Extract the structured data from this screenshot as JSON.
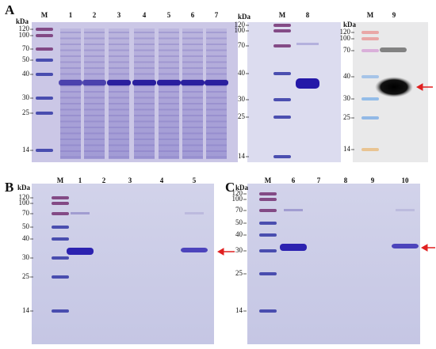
{
  "figure": {
    "panels": [
      {
        "label": "A",
        "gels": [
          {
            "unit": "kDa",
            "lanes": [
              "M",
              "1",
              "2",
              "3",
              "4",
              "5",
              "6",
              "7"
            ],
            "markers": [
              120,
              100,
              70,
              50,
              40,
              30,
              25,
              14
            ]
          },
          {
            "unit": "kDa",
            "lanes": [
              "M",
              "8"
            ],
            "markers": [
              120,
              100,
              70,
              40,
              30,
              25,
              14
            ]
          },
          {
            "unit": "kDa",
            "lanes": [
              "M",
              "9"
            ],
            "markers": [
              120,
              100,
              70,
              40,
              30,
              25,
              14
            ]
          }
        ]
      },
      {
        "label": "B",
        "gels": [
          {
            "unit": "kDa",
            "lanes": [
              "M",
              "1",
              "2",
              "3",
              "4",
              "5"
            ],
            "markers": [
              120,
              100,
              70,
              50,
              40,
              30,
              25,
              14
            ]
          }
        ]
      },
      {
        "label": "C",
        "gels": [
          {
            "unit": "kDa",
            "lanes": [
              "M",
              "6",
              "7",
              "8",
              "9",
              "10"
            ],
            "markers": [
              120,
              100,
              70,
              50,
              40,
              30,
              25,
              14
            ]
          }
        ]
      }
    ]
  }
}
